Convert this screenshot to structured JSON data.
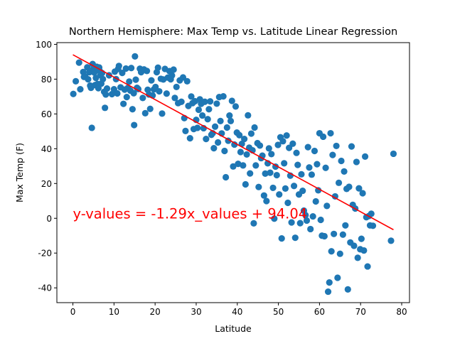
{
  "chart_data": {
    "type": "scatter",
    "title": "Northern Hemisphere: Max Temp vs. Latitude Linear Regression",
    "xlabel": "Latitude",
    "ylabel": "Max Temp (F)",
    "xlim": [
      -3.9,
      81.9
    ],
    "ylim": [
      -48.5,
      101
    ],
    "xticks": [
      0,
      10,
      20,
      30,
      40,
      50,
      60,
      70,
      80
    ],
    "yticks": [
      -40,
      -20,
      0,
      20,
      40,
      60,
      80,
      100
    ],
    "grid": false,
    "regression": {
      "slope": -1.29,
      "intercept": 94.04,
      "x_range": [
        0,
        78
      ],
      "equation_text": "y-values = -1.29x_values + 94.04",
      "annotation_at": [
        0,
        0
      ],
      "color": "#ff0000"
    },
    "marker_color": "#1f77b4",
    "series": [
      {
        "points": [
          [
            0.1,
            71.5
          ],
          [
            0.7,
            78.8
          ],
          [
            1.5,
            89.5
          ],
          [
            1.8,
            74.2
          ],
          [
            2.5,
            84.1
          ],
          [
            2.7,
            81.3
          ],
          [
            3.0,
            81.5
          ],
          [
            3.5,
            86.8
          ],
          [
            3.7,
            79.9
          ],
          [
            4.0,
            84.0
          ],
          [
            4.2,
            76.3
          ],
          [
            4.4,
            75.0
          ],
          [
            4.6,
            52.0
          ],
          [
            4.8,
            88.7
          ],
          [
            5.0,
            85.9
          ],
          [
            5.2,
            83.8
          ],
          [
            5.4,
            76.6
          ],
          [
            5.6,
            80.7
          ],
          [
            5.8,
            87.1
          ],
          [
            6.0,
            77.2
          ],
          [
            6.2,
            74.8
          ],
          [
            6.4,
            86.7
          ],
          [
            6.5,
            84.8
          ],
          [
            6.7,
            82.3
          ],
          [
            6.9,
            77.4
          ],
          [
            7.1,
            83.5
          ],
          [
            7.3,
            80.0
          ],
          [
            7.6,
            72.7
          ],
          [
            7.8,
            63.5
          ],
          [
            8.0,
            71.2
          ],
          [
            8.3,
            74.6
          ],
          [
            8.8,
            82.2
          ],
          [
            9.5,
            71.4
          ],
          [
            10.0,
            74.2
          ],
          [
            10.2,
            84.3
          ],
          [
            10.5,
            80.0
          ],
          [
            10.8,
            71.8
          ],
          [
            11.0,
            85.9
          ],
          [
            11.2,
            87.6
          ],
          [
            11.6,
            75.3
          ],
          [
            12.0,
            83.6
          ],
          [
            12.3,
            65.8
          ],
          [
            12.6,
            74.0
          ],
          [
            12.9,
            86.1
          ],
          [
            13.1,
            69.7
          ],
          [
            13.4,
            75.0
          ],
          [
            13.7,
            78.6
          ],
          [
            14.0,
            73.4
          ],
          [
            14.2,
            86.4
          ],
          [
            14.5,
            62.7
          ],
          [
            14.8,
            71.9
          ],
          [
            14.9,
            53.6
          ],
          [
            15.1,
            93.1
          ],
          [
            15.3,
            79.7
          ],
          [
            15.6,
            75.0
          ],
          [
            15.9,
            74.3
          ],
          [
            16.3,
            86.0
          ],
          [
            16.6,
            84.0
          ],
          [
            17.0,
            69.2
          ],
          [
            17.3,
            85.6
          ],
          [
            17.6,
            60.4
          ],
          [
            18.0,
            84.7
          ],
          [
            18.2,
            73.9
          ],
          [
            18.5,
            71.2
          ],
          [
            18.8,
            62.9
          ],
          [
            19.1,
            79.3
          ],
          [
            19.4,
            70.6
          ],
          [
            19.7,
            74.1
          ],
          [
            20.1,
            75.5
          ],
          [
            20.4,
            84.0
          ],
          [
            20.7,
            86.6
          ],
          [
            21.0,
            73.0
          ],
          [
            21.4,
            80.2
          ],
          [
            21.7,
            60.2
          ],
          [
            22.0,
            79.8
          ],
          [
            22.4,
            85.9
          ],
          [
            22.8,
            71.7
          ],
          [
            23.1,
            80.9
          ],
          [
            23.5,
            84.6
          ],
          [
            23.8,
            79.9
          ],
          [
            24.1,
            82.1
          ],
          [
            24.5,
            85.5
          ],
          [
            24.8,
            69.2
          ],
          [
            25.2,
            75.5
          ],
          [
            25.6,
            66.2
          ],
          [
            26.0,
            79.3
          ],
          [
            26.4,
            67.0
          ],
          [
            26.8,
            81.0
          ],
          [
            27.1,
            57.6
          ],
          [
            27.4,
            50.2
          ],
          [
            27.8,
            78.8
          ],
          [
            28.1,
            64.6
          ],
          [
            28.5,
            46.0
          ],
          [
            28.8,
            70.0
          ],
          [
            29.1,
            66.2
          ],
          [
            29.4,
            51.3
          ],
          [
            29.7,
            67.3
          ],
          [
            30.0,
            56.6
          ],
          [
            30.3,
            52.0
          ],
          [
            30.6,
            62.4
          ],
          [
            30.9,
            68.4
          ],
          [
            31.2,
            65.8
          ],
          [
            31.5,
            59.1
          ],
          [
            31.8,
            51.8
          ],
          [
            32.1,
            67.0
          ],
          [
            32.4,
            45.6
          ],
          [
            32.8,
            57.0
          ],
          [
            33.1,
            62.7
          ],
          [
            33.4,
            67.2
          ],
          [
            33.7,
            48.0
          ],
          [
            34.0,
            48.9
          ],
          [
            34.3,
            40.3
          ],
          [
            34.6,
            52.7
          ],
          [
            35.0,
            65.9
          ],
          [
            35.3,
            43.6
          ],
          [
            35.6,
            69.7
          ],
          [
            35.9,
            55.9
          ],
          [
            36.2,
            48.8
          ],
          [
            36.6,
            70.1
          ],
          [
            36.9,
            38.7
          ],
          [
            37.2,
            23.6
          ],
          [
            37.5,
            52.2
          ],
          [
            37.8,
            44.6
          ],
          [
            38.1,
            59.1
          ],
          [
            38.4,
            55.9
          ],
          [
            38.7,
            67.5
          ],
          [
            39.0,
            29.8
          ],
          [
            39.3,
            42.4
          ],
          [
            39.6,
            64.3
          ],
          [
            39.9,
            49.3
          ],
          [
            40.2,
            31.3
          ],
          [
            40.5,
            47.8
          ],
          [
            40.8,
            38.1
          ],
          [
            41.1,
            42.8
          ],
          [
            41.4,
            30.4
          ],
          [
            41.7,
            45.6
          ],
          [
            42.0,
            19.5
          ],
          [
            42.3,
            36.7
          ],
          [
            42.6,
            59.2
          ],
          [
            42.9,
            40.6
          ],
          [
            43.1,
            25.8
          ],
          [
            43.4,
            48.7
          ],
          [
            43.7,
            39.1
          ],
          [
            44.0,
            -2.9
          ],
          [
            44.2,
            52.2
          ],
          [
            44.5,
            30.4
          ],
          [
            44.9,
            43.2
          ],
          [
            45.2,
            18.0
          ],
          [
            45.5,
            41.8
          ],
          [
            45.8,
            34.6
          ],
          [
            46.1,
            36.0
          ],
          [
            46.5,
            13.1
          ],
          [
            46.8,
            25.7
          ],
          [
            47.1,
            9.9
          ],
          [
            47.4,
            31.6
          ],
          [
            47.7,
            40.2
          ],
          [
            48.0,
            26.2
          ],
          [
            48.3,
            36.9
          ],
          [
            48.7,
            17.5
          ],
          [
            49.0,
            -0.2
          ],
          [
            49.3,
            29.7
          ],
          [
            49.6,
            24.8
          ],
          [
            49.9,
            42.2
          ],
          [
            50.2,
            13.7
          ],
          [
            50.5,
            46.6
          ],
          [
            50.8,
            -11.6
          ],
          [
            51.1,
            44.3
          ],
          [
            51.4,
            31.6
          ],
          [
            51.7,
            17.1
          ],
          [
            52.0,
            47.6
          ],
          [
            52.3,
            8.9
          ],
          [
            52.6,
            40.5
          ],
          [
            52.9,
            24.5
          ],
          [
            53.2,
            -2.4
          ],
          [
            53.5,
            42.9
          ],
          [
            53.8,
            18.6
          ],
          [
            54.1,
            -11.2
          ],
          [
            54.4,
            37.6
          ],
          [
            54.7,
            30.7
          ],
          [
            55.0,
            13.7
          ],
          [
            55.3,
            -2.8
          ],
          [
            55.6,
            25.3
          ],
          [
            55.9,
            15.8
          ],
          [
            56.2,
            4.4
          ],
          [
            56.6,
            1.8
          ],
          [
            56.9,
            -1.3
          ],
          [
            57.2,
            40.9
          ],
          [
            57.5,
            29.2
          ],
          [
            57.8,
            -6.2
          ],
          [
            58.1,
            25.1
          ],
          [
            58.4,
            1.1
          ],
          [
            58.8,
            38.7
          ],
          [
            59.1,
            9.7
          ],
          [
            59.4,
            31.1
          ],
          [
            59.7,
            16.1
          ],
          [
            60.0,
            48.9
          ],
          [
            60.3,
            -0.9
          ],
          [
            60.6,
            -10.0
          ],
          [
            60.9,
            46.9
          ],
          [
            61.2,
            -10.3
          ],
          [
            61.5,
            29.0
          ],
          [
            61.8,
            7.1
          ],
          [
            62.1,
            -42.2
          ],
          [
            62.4,
            -36.9
          ],
          [
            62.7,
            48.9
          ],
          [
            62.9,
            -19.0
          ],
          [
            63.2,
            36.4
          ],
          [
            63.5,
            -9.0
          ],
          [
            63.8,
            12.6
          ],
          [
            64.1,
            41.6
          ],
          [
            64.4,
            -34.2
          ],
          [
            64.7,
            20.4
          ],
          [
            65.0,
            -20.4
          ],
          [
            65.3,
            33.0
          ],
          [
            65.7,
            -9.4
          ],
          [
            66.0,
            26.9
          ],
          [
            66.3,
            -4.1
          ],
          [
            66.6,
            16.9
          ],
          [
            66.9,
            -40.9
          ],
          [
            67.2,
            18.1
          ],
          [
            67.5,
            -13.9
          ],
          [
            67.8,
            41.3
          ],
          [
            68.1,
            7.7
          ],
          [
            68.4,
            -15.8
          ],
          [
            68.7,
            5.6
          ],
          [
            69.0,
            32.4
          ],
          [
            69.3,
            -22.7
          ],
          [
            69.6,
            17.2
          ],
          [
            69.9,
            -17.8
          ],
          [
            70.2,
            -11.8
          ],
          [
            70.5,
            14.4
          ],
          [
            70.8,
            -18.5
          ],
          [
            71.1,
            35.5
          ],
          [
            71.4,
            0.6
          ],
          [
            71.7,
            -27.7
          ],
          [
            72.0,
            1.3
          ],
          [
            72.3,
            -4.1
          ],
          [
            72.6,
            2.6
          ],
          [
            73.0,
            -4.3
          ],
          [
            77.4,
            -12.9
          ],
          [
            78.0,
            37.1
          ]
        ]
      }
    ]
  }
}
